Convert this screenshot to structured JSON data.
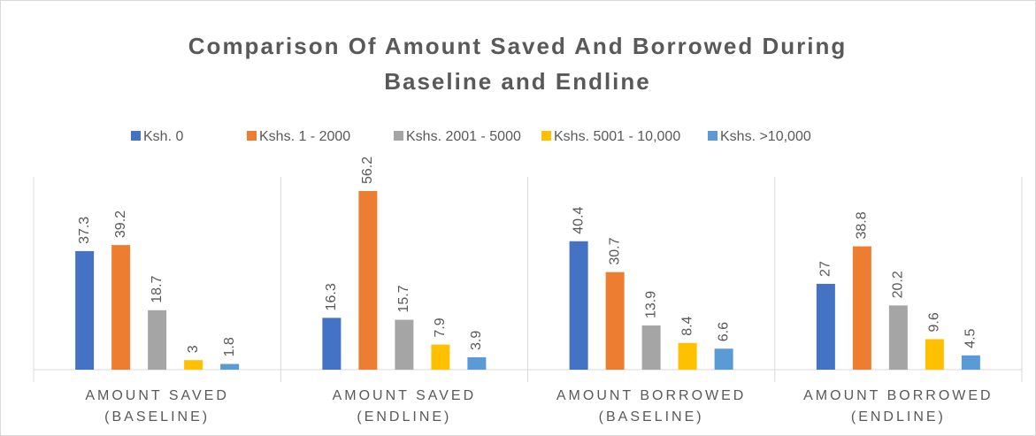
{
  "chart_data": {
    "type": "bar",
    "title": "Comparison Of Amount Saved And Borrowed During Baseline and Endline",
    "categories": [
      [
        "AMOUNT SAVED",
        "(BASELINE)"
      ],
      [
        "AMOUNT SAVED",
        "(ENDLINE)"
      ],
      [
        "AMOUNT BORROWED",
        "(BASELINE)"
      ],
      [
        "AMOUNT BORROWED",
        "(ENDLINE)"
      ]
    ],
    "series": [
      {
        "name": "Ksh. 0",
        "color": "#4472c4",
        "values": [
          37.3,
          16.3,
          40.4,
          27
        ]
      },
      {
        "name": "Kshs. 1 - 2000",
        "color": "#ed7d31",
        "values": [
          39.2,
          56.2,
          30.7,
          38.8
        ]
      },
      {
        "name": "Kshs. 2001 - 5000",
        "color": "#a5a5a5",
        "values": [
          18.7,
          15.7,
          13.9,
          20.2
        ]
      },
      {
        "name": "Kshs. 5001 - 10,000",
        "color": "#ffc000",
        "values": [
          3,
          7.9,
          8.4,
          9.6
        ]
      },
      {
        "name": "Kshs. >10,000",
        "color": "#5b9bd5",
        "values": [
          1.8,
          3.9,
          6.6,
          4.5
        ]
      }
    ],
    "legend": "top"
  }
}
